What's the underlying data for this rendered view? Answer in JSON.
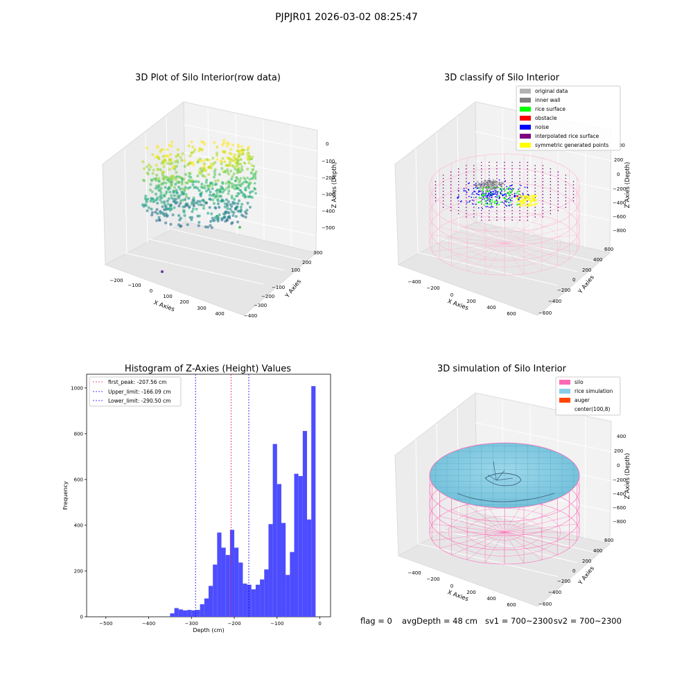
{
  "figure": {
    "suptitle": "PJPJR01 2026-03-02 08:25:47"
  },
  "status": {
    "flag": "flag = 0",
    "avg_depth": "avgDepth = 48 cm",
    "sv1": "sv1 = 700~2300",
    "sv2": "sv2 = 700~2300"
  },
  "colors": {
    "histogram_bar": "#4d4dff",
    "peak_line": "#e6194b",
    "limit_line": "#0000ff",
    "original_data": "#b3b3b3",
    "inner_wall": "#808080",
    "rice_surface": "#00ff00",
    "obstacle": "#ff0000",
    "noise": "#0000ff",
    "interpolated_rice_surface": "#800080",
    "symmetric_generated_points": "#ffff00",
    "silo": "#ff69b4",
    "rice_simulation": "#87ceeb",
    "auger": "#ff4500"
  },
  "chart_data": [
    {
      "type": "scatter",
      "projection": "3d",
      "title": "3D Plot of Silo Interior(row data)",
      "xlabel": "X Axies",
      "ylabel": "Y Axies",
      "zlabel": "Z Axies (Depth)",
      "x_ticks": [
        "−200",
        "−100",
        "0",
        "100",
        "200",
        "300",
        "400"
      ],
      "y_ticks": [
        "300",
        "200",
        "100",
        "−100",
        "−200",
        "−300",
        "−400"
      ],
      "z_ticks": [
        "0",
        "−100",
        "−200",
        "−300",
        "−400",
        "−500"
      ],
      "colormap": "viridis",
      "grid": true
    },
    {
      "type": "scatter",
      "projection": "3d",
      "title": "3D classify of Silo Interior",
      "xlabel": "X Axies",
      "ylabel": "Y Axies",
      "zlabel": "Z Axies (Depth)",
      "x_ticks": [
        "−400",
        "−200",
        "0",
        "200",
        "400",
        "600"
      ],
      "y_ticks": [
        "600",
        "400",
        "200",
        "0",
        "−200",
        "−400",
        "−600"
      ],
      "z_ticks": [
        "200",
        "0",
        "−200",
        "−400",
        "−600",
        "−800"
      ],
      "z_ticks_partial": [
        "00"
      ],
      "legend": [
        "original data",
        "inner wall",
        "rice surface",
        "obstacle",
        "noise",
        "interpolated rice surface",
        "symmetric generated points"
      ],
      "legend_position": "top-right",
      "grid": true
    },
    {
      "type": "bar",
      "title": "Histogram of Z-Axies (Height) Values",
      "xlabel": "Depth (cm)",
      "ylabel": "Frequency",
      "xlim": [
        -545,
        25
      ],
      "ylim": [
        0,
        1060
      ],
      "x_ticks": [
        -500,
        -400,
        -300,
        -200,
        -100,
        0
      ],
      "x_tick_labels": [
        "−500",
        "−400",
        "−300",
        "−200",
        "−100",
        "0"
      ],
      "y_ticks": [
        0,
        200,
        400,
        600,
        800,
        1000
      ],
      "bin_width": 10,
      "bin_starts": [
        -350,
        -340,
        -330,
        -320,
        -310,
        -300,
        -290,
        -280,
        -270,
        -260,
        -250,
        -240,
        -230,
        -220,
        -210,
        -200,
        -190,
        -180,
        -170,
        -160,
        -150,
        -140,
        -130,
        -120,
        -110,
        -100,
        -90,
        -80,
        -70,
        -60,
        -50,
        -40,
        -30,
        -20,
        -10
      ],
      "values": [
        15,
        38,
        32,
        28,
        30,
        28,
        30,
        55,
        80,
        135,
        228,
        368,
        302,
        270,
        380,
        302,
        237,
        145,
        140,
        120,
        140,
        163,
        207,
        405,
        755,
        580,
        410,
        183,
        283,
        625,
        615,
        812,
        425,
        1008,
        0
      ],
      "vlines": [
        {
          "x": -207.56,
          "label": "first_peak: -207.56 cm"
        },
        {
          "x": -166.09,
          "label": "Upper_limit: -166.09 cm"
        },
        {
          "x": -290.5,
          "label": "Lower_limit: -290.50 cm"
        }
      ],
      "legend_position": "top-left"
    },
    {
      "type": "area",
      "projection": "3d",
      "title": "3D simulation of Silo Interior",
      "xlabel": "X Axies",
      "ylabel": "Y Axies",
      "zlabel": "Z Axies (Depth)",
      "x_ticks": [
        "−400",
        "−200",
        "0",
        "200",
        "400",
        "600"
      ],
      "y_ticks": [
        "600",
        "400",
        "200",
        "0",
        "−200",
        "−400",
        "−600"
      ],
      "z_ticks": [
        "400",
        "200",
        "0",
        "−200",
        "−400",
        "−600",
        "−800"
      ],
      "legend": [
        "silo",
        "rice simulation",
        "auger",
        "center(100,8)"
      ],
      "legend_position": "top-right",
      "grid": true
    }
  ]
}
